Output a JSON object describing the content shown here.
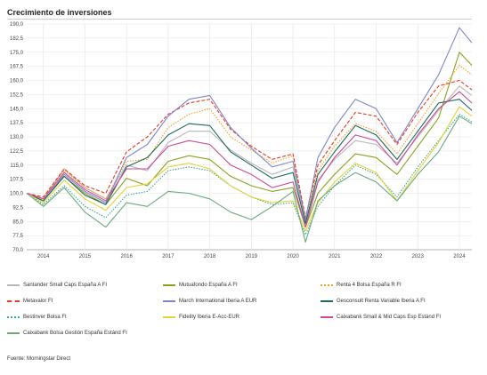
{
  "chart_data": {
    "type": "line",
    "title": "Crecimiento de inversiones",
    "xlabel": "",
    "ylabel": "",
    "source": "Fuente: Morningstar Direct",
    "x_ticks": [
      "2014",
      "2015",
      "2016",
      "2017",
      "2018",
      "2019",
      "2020",
      "2021",
      "2022",
      "2023",
      "2024"
    ],
    "y_ticks": [
      "70,0",
      "77,5",
      "85,0",
      "92,5",
      "100,0",
      "107,5",
      "115,0",
      "122,5",
      "130,0",
      "137,5",
      "145,0",
      "152,5",
      "160,0",
      "167,5",
      "175,0",
      "182,5",
      "190,0"
    ],
    "xlim": [
      2013.6,
      2024.3
    ],
    "ylim": [
      70,
      190
    ],
    "grid": true,
    "legend_position": "bottom",
    "x": [
      2013.6,
      2014.0,
      2014.5,
      2015.0,
      2015.5,
      2016.0,
      2016.5,
      2017.0,
      2017.5,
      2018.0,
      2018.5,
      2019.0,
      2019.5,
      2020.0,
      2020.3,
      2020.6,
      2021.0,
      2021.5,
      2022.0,
      2022.5,
      2023.0,
      2023.5,
      2024.0,
      2024.3
    ],
    "series": [
      {
        "name": "Santander Small Caps España A FI",
        "color": "#b8b8b8",
        "dash": "solid",
        "values": [
          100,
          97,
          113,
          103,
          97,
          115,
          112,
          127,
          133,
          133,
          123,
          116,
          110,
          114,
          84,
          107,
          118,
          128,
          126,
          116,
          130,
          144,
          157,
          152
        ]
      },
      {
        "name": "Mutuafondo España A FI",
        "color": "#8aa21f",
        "dash": "solid",
        "values": [
          100,
          96,
          109,
          100,
          94,
          108,
          104,
          117,
          120,
          118,
          109,
          104,
          101,
          103,
          82,
          100,
          110,
          121,
          119,
          110,
          125,
          140,
          175,
          168
        ]
      },
      {
        "name": "Renta 4 Bolsa España R FI",
        "color": "#f0a020",
        "dash": "dotted",
        "values": [
          100,
          97,
          112,
          103,
          97,
          117,
          118,
          135,
          142,
          145,
          130,
          123,
          116,
          120,
          86,
          112,
          125,
          137,
          133,
          121,
          137,
          153,
          168,
          163
        ]
      },
      {
        "name": "Metavalor FI",
        "color": "#e83a20",
        "dash": "dashed",
        "values": [
          100,
          98,
          113,
          104,
          100,
          122,
          130,
          142,
          148,
          150,
          134,
          125,
          118,
          121,
          87,
          115,
          128,
          143,
          141,
          126,
          143,
          157,
          160,
          155
        ]
      },
      {
        "name": "March International Iberia A EUR",
        "color": "#7d86c8",
        "dash": "solid",
        "values": [
          100,
          96,
          110,
          101,
          95,
          119,
          126,
          141,
          150,
          152,
          135,
          124,
          114,
          117,
          86,
          119,
          135,
          150,
          145,
          127,
          145,
          163,
          188,
          180
        ]
      },
      {
        "name": "Gesconsult Renta Variable Iberia A FI",
        "color": "#1f6a5e",
        "dash": "solid",
        "values": [
          100,
          96,
          109,
          99,
          94,
          114,
          119,
          131,
          137,
          136,
          122,
          115,
          108,
          111,
          84,
          110,
          122,
          136,
          131,
          118,
          133,
          148,
          150,
          144
        ]
      },
      {
        "name": "Bestinver Bolsa FI",
        "color": "#3aaa8a",
        "dash": "dotted",
        "values": [
          100,
          94,
          104,
          93,
          87,
          99,
          101,
          112,
          114,
          112,
          104,
          98,
          94,
          95,
          78,
          93,
          104,
          115,
          110,
          98,
          114,
          128,
          142,
          138
        ]
      },
      {
        "name": "Fidelity Iberia E-Acc-EUR",
        "color": "#e6d23a",
        "dash": "solid",
        "values": [
          100,
          95,
          107,
          97,
          91,
          103,
          105,
          114,
          116,
          113,
          104,
          98,
          95,
          96,
          80,
          95,
          106,
          116,
          111,
          96,
          112,
          127,
          146,
          141
        ]
      },
      {
        "name": "Caixabank Small & Mid Caps Esp Estánd FI",
        "color": "#c94a9a",
        "dash": "solid",
        "values": [
          100,
          97,
          111,
          102,
          96,
          113,
          113,
          125,
          128,
          126,
          115,
          110,
          103,
          106,
          82,
          106,
          119,
          131,
          128,
          115,
          131,
          145,
          154,
          148
        ]
      },
      {
        "name": "Caixabank Bolsa Gestión España Estánd FI",
        "color": "#6aaa7c",
        "dash": "solid",
        "values": [
          100,
          93,
          103,
          90,
          82,
          95,
          93,
          101,
          100,
          97,
          90,
          86,
          93,
          101,
          74,
          96,
          104,
          111,
          106,
          96,
          110,
          122,
          141,
          137
        ]
      }
    ]
  }
}
